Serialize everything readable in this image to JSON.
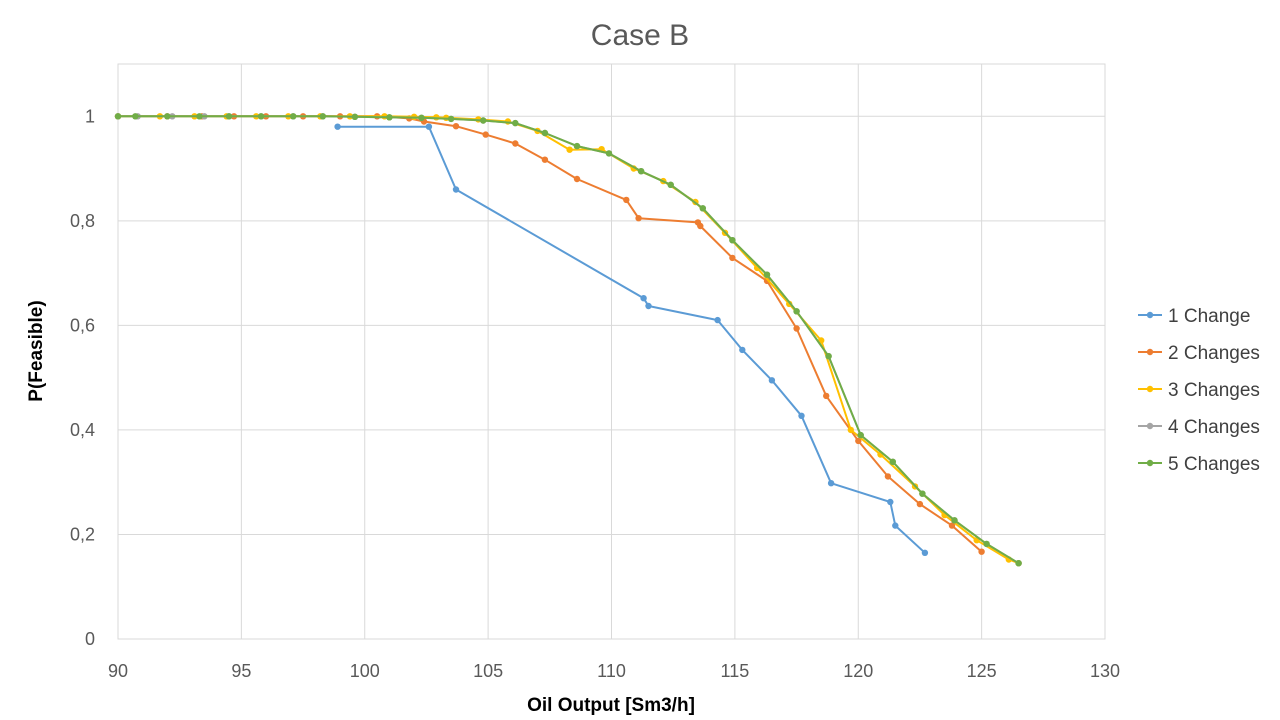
{
  "chart_data": {
    "type": "line",
    "title": "Case B",
    "xlabel": "Oil Output [Sm3/h]",
    "ylabel": "P(Feasible)",
    "xlim": [
      90,
      130
    ],
    "ylim": [
      0,
      1.1
    ],
    "x_ticks": [
      90,
      95,
      100,
      105,
      110,
      115,
      120,
      125,
      130
    ],
    "y_ticks": [
      0,
      0.2,
      0.4,
      0.6,
      0.8,
      1
    ],
    "x_tick_labels": [
      "90",
      "95",
      "100",
      "105",
      "110",
      "115",
      "120",
      "125",
      "130"
    ],
    "y_tick_labels": [
      "0",
      "0,2",
      "0,4",
      "0,6",
      "0,8",
      "1"
    ],
    "grid": true,
    "legend_position": "right",
    "series": [
      {
        "name": "1 Change",
        "color": "#5B9BD5",
        "points": [
          [
            98.9,
            0.98
          ],
          [
            102.6,
            0.98
          ],
          [
            103.7,
            0.86
          ],
          [
            111.3,
            0.652
          ],
          [
            111.5,
            0.637
          ],
          [
            114.3,
            0.61
          ],
          [
            115.3,
            0.553
          ],
          [
            116.5,
            0.495
          ],
          [
            117.7,
            0.427
          ],
          [
            118.9,
            0.298
          ],
          [
            121.3,
            0.262
          ],
          [
            121.5,
            0.217
          ],
          [
            122.7,
            0.165
          ]
        ]
      },
      {
        "name": "2 Changes",
        "color": "#ED7D31",
        "points": [
          [
            90,
            1.0
          ],
          [
            92.0,
            1.0
          ],
          [
            93.4,
            1.0
          ],
          [
            94.7,
            1.0
          ],
          [
            96.0,
            1.0
          ],
          [
            97.5,
            1.0
          ],
          [
            99.0,
            1.0
          ],
          [
            100.5,
            1.0
          ],
          [
            101.8,
            0.996
          ],
          [
            102.4,
            0.99
          ],
          [
            103.7,
            0.981
          ],
          [
            104.9,
            0.965
          ],
          [
            106.1,
            0.948
          ],
          [
            107.3,
            0.917
          ],
          [
            108.6,
            0.88
          ],
          [
            110.6,
            0.84
          ],
          [
            111.1,
            0.805
          ],
          [
            113.5,
            0.797
          ],
          [
            113.6,
            0.79
          ],
          [
            114.9,
            0.729
          ],
          [
            116.3,
            0.685
          ],
          [
            117.5,
            0.594
          ],
          [
            118.7,
            0.465
          ],
          [
            120.0,
            0.379
          ],
          [
            121.2,
            0.311
          ],
          [
            122.5,
            0.258
          ],
          [
            123.8,
            0.217
          ],
          [
            125.0,
            0.167
          ]
        ]
      },
      {
        "name": "3 Changes",
        "color": "#FFC000",
        "points": [
          [
            90,
            1.0
          ],
          [
            91.7,
            1.0
          ],
          [
            93.1,
            1.0
          ],
          [
            94.4,
            1.0
          ],
          [
            95.6,
            1.0
          ],
          [
            96.9,
            1.0
          ],
          [
            98.2,
            1.0
          ],
          [
            99.4,
            1.0
          ],
          [
            100.8,
            1.0
          ],
          [
            102.0,
            0.999
          ],
          [
            102.9,
            0.998
          ],
          [
            103.3,
            0.997
          ],
          [
            104.6,
            0.994
          ],
          [
            105.8,
            0.99
          ],
          [
            107.0,
            0.972
          ],
          [
            108.3,
            0.936
          ],
          [
            109.6,
            0.937
          ],
          [
            110.9,
            0.9
          ],
          [
            112.1,
            0.876
          ],
          [
            113.4,
            0.836
          ],
          [
            114.6,
            0.777
          ],
          [
            115.9,
            0.71
          ],
          [
            117.2,
            0.641
          ],
          [
            118.5,
            0.571
          ],
          [
            119.7,
            0.4
          ],
          [
            120.9,
            0.353
          ],
          [
            122.3,
            0.292
          ],
          [
            123.5,
            0.237
          ],
          [
            124.8,
            0.189
          ],
          [
            126.1,
            0.152
          ],
          [
            126.5,
            0.145
          ]
        ]
      },
      {
        "name": "4 Changes",
        "color": "#A5A5A5",
        "points": [
          [
            90,
            1.0
          ],
          [
            90.8,
            1.0
          ],
          [
            92.2,
            1.0
          ],
          [
            93.5,
            1.0
          ],
          [
            94.5,
            1.0
          ],
          [
            95.8,
            1.0
          ],
          [
            97.1,
            1.0
          ],
          [
            98.3,
            1.0
          ],
          [
            99.6,
            0.999
          ],
          [
            101.0,
            0.998
          ],
          [
            102.3,
            0.997
          ],
          [
            103.5,
            0.995
          ],
          [
            104.8,
            0.992
          ],
          [
            106.1,
            0.987
          ],
          [
            107.3,
            0.968
          ],
          [
            108.6,
            0.943
          ],
          [
            109.9,
            0.929
          ],
          [
            111.2,
            0.895
          ],
          [
            112.4,
            0.869
          ],
          [
            113.7,
            0.824
          ],
          [
            114.9,
            0.763
          ],
          [
            116.3,
            0.697
          ],
          [
            117.5,
            0.627
          ],
          [
            118.8,
            0.541
          ],
          [
            120.1,
            0.39
          ],
          [
            121.4,
            0.339
          ],
          [
            122.6,
            0.278
          ],
          [
            123.9,
            0.227
          ],
          [
            125.2,
            0.182
          ],
          [
            126.5,
            0.145
          ]
        ]
      },
      {
        "name": "5 Changes",
        "color": "#70AD47",
        "points": [
          [
            90,
            1.0
          ],
          [
            90.7,
            1.0
          ],
          [
            92.0,
            1.0
          ],
          [
            93.3,
            1.0
          ],
          [
            94.5,
            1.0
          ],
          [
            95.8,
            1.0
          ],
          [
            97.1,
            1.0
          ],
          [
            98.3,
            1.0
          ],
          [
            99.6,
            0.999
          ],
          [
            101.0,
            0.998
          ],
          [
            102.3,
            0.997
          ],
          [
            103.5,
            0.995
          ],
          [
            104.8,
            0.992
          ],
          [
            106.1,
            0.987
          ],
          [
            107.3,
            0.968
          ],
          [
            108.6,
            0.943
          ],
          [
            109.9,
            0.929
          ],
          [
            111.2,
            0.895
          ],
          [
            112.4,
            0.869
          ],
          [
            113.7,
            0.824
          ],
          [
            114.9,
            0.763
          ],
          [
            116.3,
            0.697
          ],
          [
            117.5,
            0.627
          ],
          [
            118.8,
            0.541
          ],
          [
            120.1,
            0.39
          ],
          [
            121.4,
            0.339
          ],
          [
            122.6,
            0.278
          ],
          [
            123.9,
            0.227
          ],
          [
            125.2,
            0.182
          ],
          [
            126.5,
            0.145
          ]
        ]
      }
    ]
  }
}
